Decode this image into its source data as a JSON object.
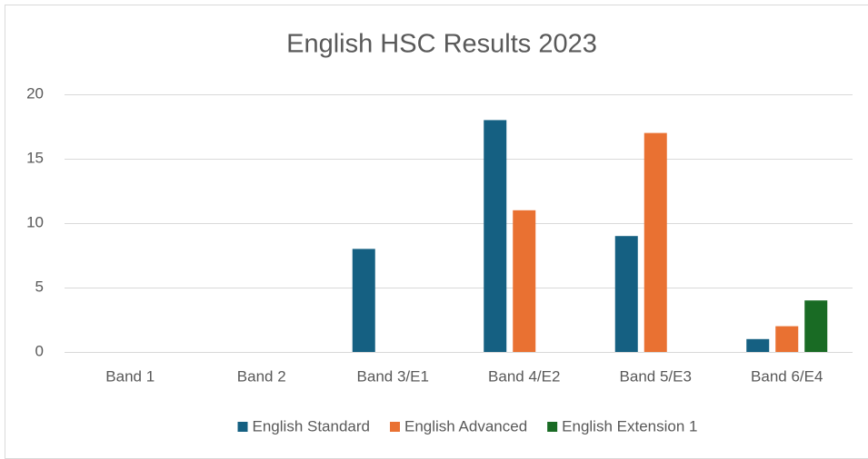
{
  "chart_data": {
    "type": "bar",
    "title": "English HSC Results 2023",
    "categories": [
      "Band 1",
      "Band 2",
      "Band 3/E1",
      "Band 4/E2",
      "Band 5/E3",
      "Band 6/E4"
    ],
    "series": [
      {
        "name": "English Standard",
        "color": "#156082",
        "values": [
          0,
          0,
          8,
          18,
          9,
          1
        ]
      },
      {
        "name": "English Advanced",
        "color": "#e97132",
        "values": [
          0,
          0,
          0,
          11,
          17,
          2
        ]
      },
      {
        "name": "English Extension 1",
        "color": "#196b24",
        "values": [
          0,
          0,
          0,
          0,
          0,
          4
        ]
      }
    ],
    "ylim": [
      0,
      20
    ],
    "yticks": [
      0,
      5,
      10,
      15,
      20
    ],
    "grid": true,
    "legend": "bottom"
  }
}
